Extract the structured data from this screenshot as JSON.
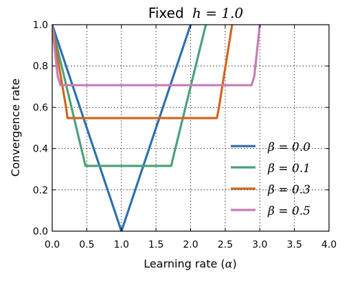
{
  "chart_data": {
    "type": "line",
    "title": {
      "prefix": "Fixed",
      "math": "h = 1.0"
    },
    "xlabel": {
      "text": "Learning rate (",
      "math": "α",
      "suffix": ")"
    },
    "ylabel": "Convergence rate",
    "xlim": [
      0.0,
      4.0
    ],
    "ylim": [
      0.0,
      1.0
    ],
    "xticks": [
      "0.0",
      "0.5",
      "1.0",
      "1.5",
      "2.0",
      "2.5",
      "3.0",
      "3.5",
      "4.0"
    ],
    "yticks": [
      "0.0",
      "0.2",
      "0.4",
      "0.6",
      "0.8",
      "1.0"
    ],
    "grid": true,
    "legend_position": "lower right",
    "series": [
      {
        "name": "β = 0.0",
        "color": "#2f6fad",
        "x": [
          0.0,
          1.0,
          2.0
        ],
        "y": [
          1.0,
          0.0,
          1.0
        ]
      },
      {
        "name": "β = 0.1",
        "color": "#4aa178",
        "x": [
          0.0,
          0.45,
          0.48,
          1.72,
          1.75,
          2.22
        ],
        "y": [
          0.99,
          0.36,
          0.316,
          0.316,
          0.36,
          1.0
        ]
      },
      {
        "name": "β = 0.3",
        "color": "#d0661f",
        "x": [
          0.0,
          0.2,
          0.22,
          2.38,
          2.41,
          2.6
        ],
        "y": [
          0.99,
          0.6,
          0.548,
          0.548,
          0.6,
          1.0
        ]
      },
      {
        "name": "β = 0.5",
        "color": "#c67bb4",
        "x": [
          0.0,
          0.08,
          0.12,
          2.88,
          2.92,
          3.0
        ],
        "y": [
          0.99,
          0.75,
          0.707,
          0.707,
          0.75,
          1.0
        ]
      }
    ]
  }
}
